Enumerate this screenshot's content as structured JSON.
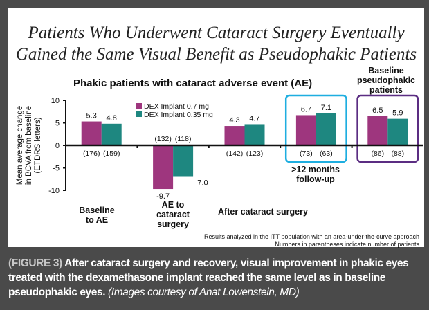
{
  "figure": {
    "title_line1": "Patients Who Underwent Cataract Surgery Eventually",
    "title_line2": "Gained the Same Visual Benefit as Pseudophakic Patients",
    "caption_label": "(FIGURE 3)",
    "caption_text": "After cataract surgery and recovery, visual improvement in phakic eyes treated with the dexamethasone implant reached the same level as in baseline pseudophakic eyes.",
    "caption_credit": "(Images courtesy of Anat Lowenstein, MD)"
  },
  "chart_data": {
    "type": "bar",
    "title": "Phakic patients with cataract adverse event (AE)",
    "ylabel": "Mean average change in BCVA from baseline (ETDRS letters)",
    "ylabel_lines": [
      "Mean average change",
      "in BCVA from baseline",
      "(ETDRS letters)"
    ],
    "ylim": [
      -10,
      10
    ],
    "yticks": [
      10,
      5,
      0,
      -5,
      -10
    ],
    "ytick_labels": [
      "10",
      "5",
      "0",
      "-5",
      "-10"
    ],
    "grid": false,
    "legend_position": "top-center",
    "categories": [
      "Baseline to AE",
      "AE to cataract surgery",
      "After cataract surgery",
      ">12 months follow-up",
      "Baseline pseudophakic patients"
    ],
    "category_label_lines": [
      [
        "Baseline",
        "to AE"
      ],
      [
        "AE to",
        "cataract",
        "surgery"
      ],
      [
        "After cataract surgery"
      ],
      [
        ">12 months",
        "follow-up"
      ],
      [
        "Baseline",
        "pseudophakic",
        "patients"
      ]
    ],
    "series": [
      {
        "name": "DEX Implant 0.7 mg",
        "color": "#9e367e",
        "values": [
          5.3,
          -9.7,
          4.3,
          6.7,
          6.5
        ],
        "labels": [
          "5.3",
          "-9.7",
          "4.3",
          "6.7",
          "6.5"
        ],
        "n": [
          "(176)",
          "(132)",
          "(142)",
          "(73)",
          "(86)"
        ]
      },
      {
        "name": "DEX Implant 0.35 mg",
        "color": "#1e8780",
        "values": [
          4.8,
          -7.0,
          4.7,
          7.1,
          5.9
        ],
        "labels": [
          "4.8",
          "-7.0",
          "4.7",
          "7.1",
          "5.9"
        ],
        "n": [
          "(159)",
          "(118)",
          "(123)",
          "(63)",
          "(88)"
        ]
      }
    ],
    "highlight_boxes": [
      {
        "category_index": 3,
        "color": "#1eaee0"
      },
      {
        "category_index": 4,
        "color": "#5b2d82"
      }
    ],
    "footnotes": [
      "Results analyzed in the ITT population with an area-under-the-curve approach",
      "Numbers in parentheses indicate number of patients"
    ]
  }
}
